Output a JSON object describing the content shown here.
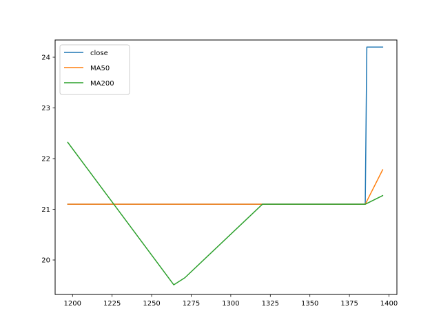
{
  "chart_data": {
    "type": "line",
    "xlim": [
      1189,
      1405
    ],
    "ylim": [
      19.32,
      24.34
    ],
    "xticks": [
      1200,
      1225,
      1250,
      1275,
      1300,
      1325,
      1350,
      1375,
      1400
    ],
    "yticks": [
      20,
      21,
      22,
      23,
      24
    ],
    "legend_position": "top-left",
    "grid": false,
    "series": [
      {
        "name": "close",
        "color": "#1f77b4",
        "x": [
          1197,
          1385,
          1386,
          1396
        ],
        "y": [
          21.1,
          21.1,
          24.2,
          24.2
        ]
      },
      {
        "name": "MA50",
        "color": "#ff7f0e",
        "x": [
          1197,
          1385,
          1396
        ],
        "y": [
          21.1,
          21.1,
          21.78
        ]
      },
      {
        "name": "MA200",
        "color": "#2ca02c",
        "x": [
          1197,
          1264,
          1271,
          1320,
          1385,
          1396
        ],
        "y": [
          22.32,
          19.51,
          19.65,
          21.1,
          21.1,
          21.27
        ]
      }
    ]
  }
}
